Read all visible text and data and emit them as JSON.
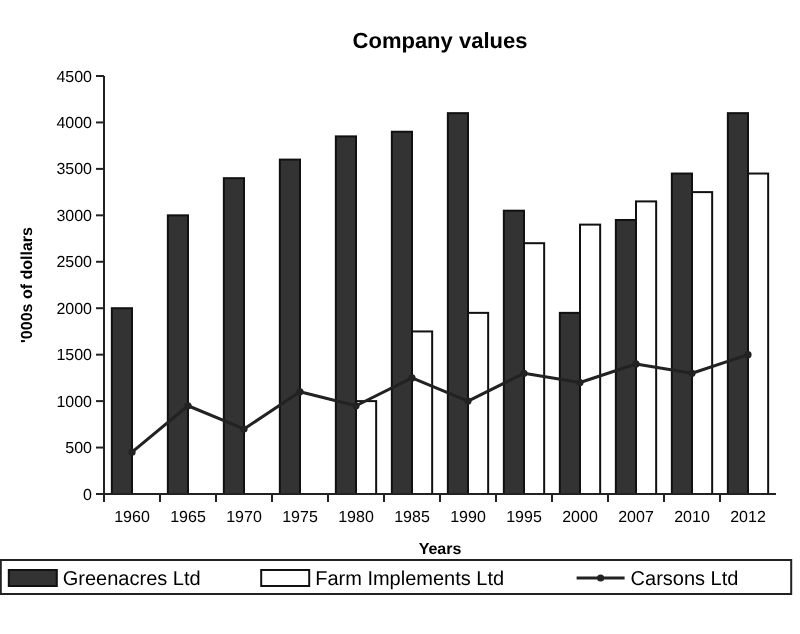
{
  "chart_data": {
    "type": "bar",
    "title": "Company values",
    "xlabel": "Years",
    "ylabel": "'000s of dollars",
    "categories": [
      "1960",
      "1965",
      "1970",
      "1975",
      "1980",
      "1985",
      "1990",
      "1995",
      "2000",
      "2007",
      "2010",
      "2012"
    ],
    "series": [
      {
        "name": "Greenacres Ltd",
        "color": "#333333",
        "values": [
          2000,
          3000,
          3400,
          3600,
          3850,
          3900,
          4100,
          3050,
          1950,
          2950,
          3450,
          4100
        ]
      },
      {
        "name": "Farm Implements Ltd",
        "color": "#ffffff",
        "values": [
          null,
          null,
          null,
          null,
          1000,
          1750,
          1950,
          2700,
          2900,
          3150,
          3250,
          3450
        ]
      },
      {
        "name": "Carsons Ltd",
        "type": "line",
        "color": "#222222",
        "values": [
          450,
          950,
          700,
          1100,
          950,
          1250,
          1000,
          1300,
          1200,
          1400,
          1300,
          1500
        ]
      }
    ],
    "ylim": [
      0,
      4500
    ],
    "yticks": [
      0,
      500,
      1000,
      1500,
      2000,
      2500,
      3000,
      3500,
      4000,
      4500
    ],
    "grid": false,
    "legend": "bottom",
    "marker": "circle",
    "line_style": "solid"
  }
}
